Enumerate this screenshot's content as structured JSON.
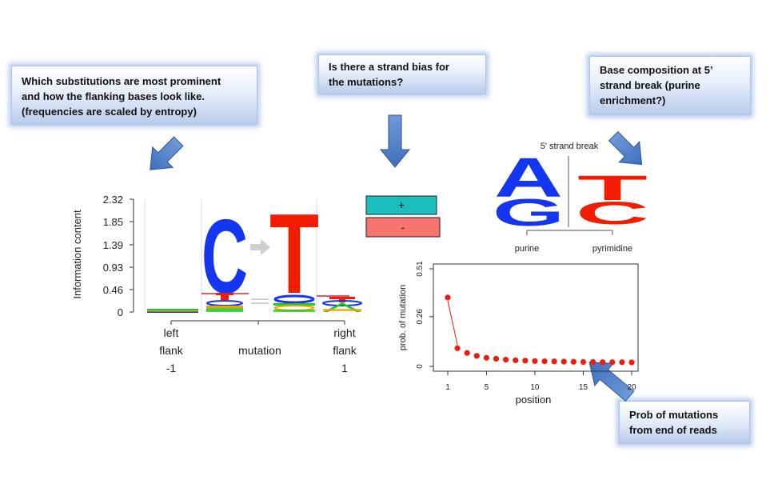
{
  "callouts": {
    "substitutions": "Which substitutions are most prominent\nand how the flanking bases look like.\n(frequencies are scaled by entropy)",
    "strand_bias": "Is there a strand bias for\nthe mutations?",
    "base_composition": "Base composition at 5’\nstrand break (purine\nenrichment?)",
    "prob_mutations": "Prob of mutations\nfrom end of reads"
  },
  "logo": {
    "ylabel": "Information content",
    "yticks": [
      "2.32",
      "1.85",
      "1.39",
      "0.93",
      "0.46",
      "0"
    ],
    "xlabels": {
      "left": [
        "left",
        "flank",
        "-1"
      ],
      "middle": "mutation",
      "right": [
        "right",
        "flank",
        "1"
      ]
    },
    "ref_base": "C",
    "alt_base": "T"
  },
  "strand": {
    "plus": "+",
    "minus": "-",
    "plus_color": "#1cbdbd",
    "minus_color": "#f7756e"
  },
  "break_logo": {
    "title": "5' strand break",
    "purine_bases": [
      "A",
      "G"
    ],
    "pyrimidine_bases": [
      "T",
      "C"
    ],
    "purine_label": "purine",
    "pyrimidine_label": "pyrimidine"
  },
  "colors": {
    "A": "#1ec71e",
    "C": "#1536f0",
    "G": "#f2a200",
    "T": "#f21d00"
  },
  "chart_data": {
    "type": "scatter",
    "xlabel": "position",
    "ylabel": "prob. of mutation",
    "xlim": [
      1,
      20
    ],
    "ylim": [
      0,
      0.51
    ],
    "xticks": [
      1,
      5,
      10,
      15,
      20
    ],
    "yticks": [
      "0",
      "0.26",
      "0.51"
    ],
    "x": [
      1,
      2,
      3,
      4,
      5,
      6,
      7,
      8,
      9,
      10,
      11,
      12,
      13,
      14,
      15,
      16,
      17,
      18,
      19,
      20
    ],
    "y": [
      0.36,
      0.095,
      0.07,
      0.055,
      0.045,
      0.04,
      0.035,
      0.032,
      0.03,
      0.028,
      0.027,
      0.026,
      0.025,
      0.024,
      0.023,
      0.023,
      0.022,
      0.022,
      0.022,
      0.021
    ],
    "point_color": "#ee1c0c"
  }
}
